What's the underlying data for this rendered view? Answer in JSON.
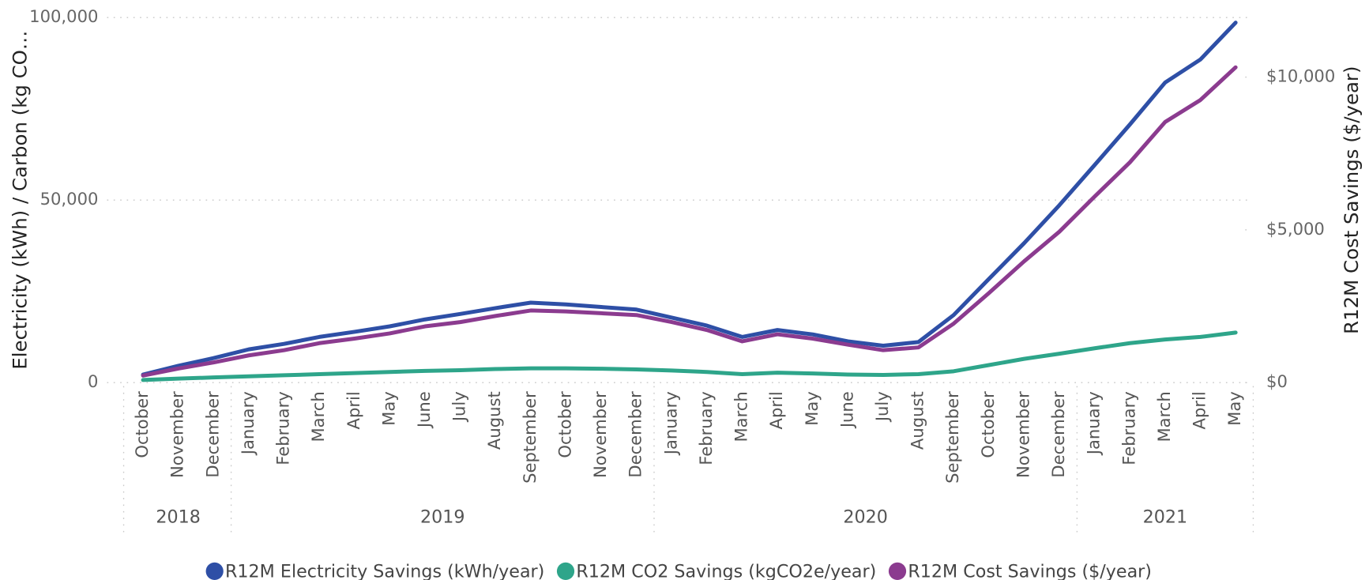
{
  "chart_data": {
    "type": "line",
    "y_label": "Electricity (kWh) / Carbon (kg CO…",
    "y2_label": "R12M Cost Savings ($/year)",
    "categories": [
      "October",
      "November",
      "December",
      "January",
      "February",
      "March",
      "April",
      "May",
      "June",
      "July",
      "August",
      "September",
      "October",
      "November",
      "December",
      "January",
      "February",
      "March",
      "April",
      "May",
      "June",
      "July",
      "August",
      "September",
      "October",
      "November",
      "December",
      "January",
      "February",
      "March",
      "April",
      "May"
    ],
    "x_groups": [
      {
        "label": "2018",
        "span": 3
      },
      {
        "label": "2019",
        "span": 12
      },
      {
        "label": "2020",
        "span": 12
      },
      {
        "label": "2021",
        "span": 5
      }
    ],
    "series": [
      {
        "name": "R12M Electricity Savings (kWh/year)",
        "color": "#2e4fa6",
        "axis": "y",
        "values": [
          2200,
          4600,
          6700,
          9100,
          10600,
          12500,
          13900,
          15400,
          17300,
          18800,
          20400,
          21900,
          21400,
          20700,
          20000,
          17800,
          15600,
          12500,
          14400,
          13200,
          11300,
          10100,
          11100,
          18500,
          28400,
          38200,
          48600,
          59600,
          70700,
          82200,
          88500,
          98600
        ]
      },
      {
        "name": "R12M CO2 Savings (kgCO2e/year)",
        "color": "#2ea58a",
        "axis": "y",
        "values": [
          700,
          1100,
          1400,
          1700,
          2000,
          2300,
          2600,
          2900,
          3200,
          3400,
          3700,
          3900,
          3900,
          3800,
          3600,
          3300,
          2900,
          2300,
          2700,
          2500,
          2200,
          2100,
          2300,
          3100,
          4800,
          6500,
          7900,
          9400,
          10800,
          11800,
          12500,
          13700
        ]
      },
      {
        "name": "R12M Cost Savings ($/year)",
        "color": "#8b3b8f",
        "axis": "y2",
        "values": [
          230,
          460,
          660,
          890,
          1060,
          1290,
          1440,
          1610,
          1840,
          1980,
          2180,
          2360,
          2330,
          2270,
          2210,
          1980,
          1720,
          1350,
          1580,
          1440,
          1240,
          1060,
          1150,
          1930,
          2930,
          3970,
          4940,
          6090,
          7210,
          8530,
          9250,
          10320
        ]
      }
    ],
    "ylim": [
      0,
      100000
    ],
    "yticks": [
      0,
      {
        "value": 50000,
        "label": "50,000"
      },
      {
        "value": 100000,
        "label": "100,000"
      }
    ],
    "y2lim": [
      0,
      11950
    ],
    "y2ticks": [
      {
        "value": 0,
        "label": "$0"
      },
      {
        "value": 5000,
        "label": "$5,000"
      },
      {
        "value": 10000,
        "label": "$10,000"
      }
    ],
    "grid": true,
    "legend": "bottom"
  }
}
